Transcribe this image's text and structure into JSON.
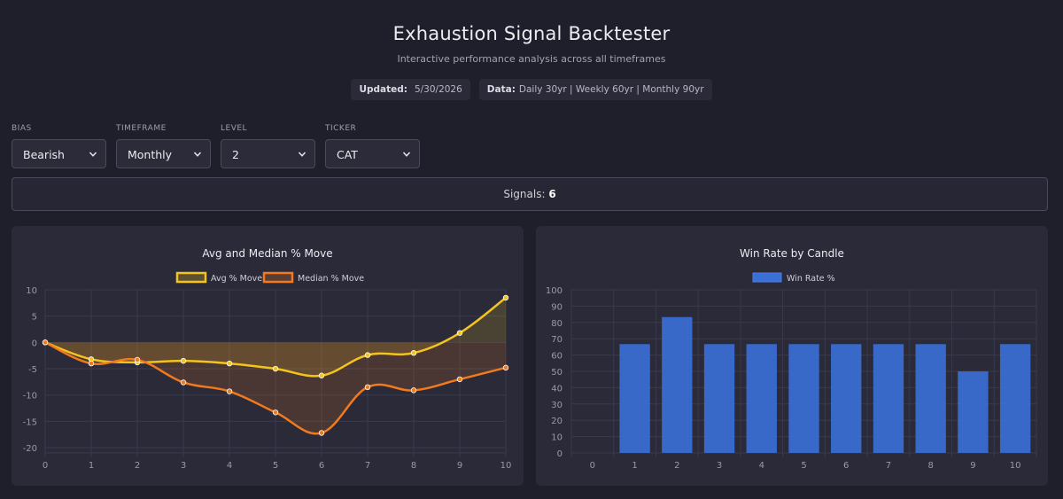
{
  "header": {
    "title": "Exhaustion Signal Backtester",
    "subtitle": "Interactive performance analysis across all timeframes",
    "updated_label": "Updated:",
    "updated_value": "5/30/2026",
    "data_label": "Data:",
    "data_value": "Daily 30yr | Weekly 60yr | Monthly 90yr"
  },
  "controls": {
    "bias": {
      "label": "BIAS",
      "value": "Bearish"
    },
    "timeframe": {
      "label": "TIMEFRAME",
      "value": "Monthly"
    },
    "level": {
      "label": "LEVEL",
      "value": "2"
    },
    "ticker": {
      "label": "TICKER",
      "value": "CAT"
    }
  },
  "signals": {
    "label": "Signals:",
    "count": "6"
  },
  "colors": {
    "avg_line": "#f2c41c",
    "median_line": "#f07a1d",
    "bar": "#3a6fd8",
    "grid": "#3a3a4e"
  },
  "chart_data": [
    {
      "type": "line",
      "title": "Avg and Median % Move",
      "x": [
        0,
        1,
        2,
        3,
        4,
        5,
        6,
        7,
        8,
        9,
        10
      ],
      "xticks": [
        "0",
        "1",
        "2",
        "3",
        "4",
        "5",
        "6",
        "7",
        "8",
        "9",
        "10"
      ],
      "ylim": [
        -21,
        10
      ],
      "yticks": [
        10,
        5,
        0,
        -5,
        -10,
        -15,
        -20
      ],
      "legend": "top",
      "grid": true,
      "series": [
        {
          "name": "Avg % Move",
          "values": [
            0,
            -3.2,
            -3.8,
            -3.5,
            -4.0,
            -5.0,
            -6.3,
            -2.4,
            -2.0,
            1.8,
            8.5
          ]
        },
        {
          "name": "Median % Move",
          "values": [
            0,
            -4.0,
            -3.3,
            -7.6,
            -9.3,
            -13.3,
            -17.2,
            -8.5,
            -9.1,
            -7.0,
            -4.8
          ]
        }
      ]
    },
    {
      "type": "bar",
      "title": "Win Rate by Candle",
      "categories": [
        "0",
        "1",
        "2",
        "3",
        "4",
        "5",
        "6",
        "7",
        "8",
        "9",
        "10"
      ],
      "ylim": [
        0,
        100
      ],
      "yticks": [
        100,
        90,
        80,
        70,
        60,
        50,
        40,
        30,
        20,
        10,
        0
      ],
      "legend": "top",
      "grid": true,
      "series": [
        {
          "name": "Win Rate %",
          "values": [
            0,
            66.7,
            83.3,
            66.7,
            66.7,
            66.7,
            66.7,
            66.7,
            66.7,
            50,
            66.7
          ]
        }
      ]
    }
  ]
}
